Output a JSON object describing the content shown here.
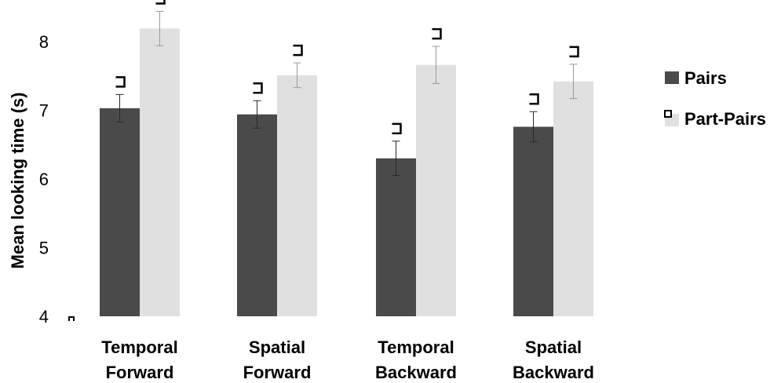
{
  "chart_data": {
    "type": "bar",
    "ylabel": "Mean looking time (s)",
    "xlabel": "",
    "ylim": [
      4,
      8.5
    ],
    "yticks": [
      "4",
      "5",
      "6",
      "7",
      "8"
    ],
    "grid": false,
    "legend_position": "right",
    "categories": [
      [
        "Temporal",
        "Forward"
      ],
      [
        "Spatial",
        "Forward"
      ],
      [
        "Temporal",
        "Backward"
      ],
      [
        "Spatial",
        "Backward"
      ]
    ],
    "series": [
      {
        "name": "Pairs",
        "color": "#4a4a4a",
        "values": [
          7.03,
          6.94,
          6.3,
          6.76
        ],
        "error": [
          0.2,
          0.2,
          0.25,
          0.22
        ]
      },
      {
        "name": "Part-Pairs",
        "color": "#e0e0e0",
        "values": [
          8.19,
          7.51,
          7.66,
          7.42
        ],
        "error": [
          0.25,
          0.18,
          0.27,
          0.25
        ]
      }
    ]
  }
}
